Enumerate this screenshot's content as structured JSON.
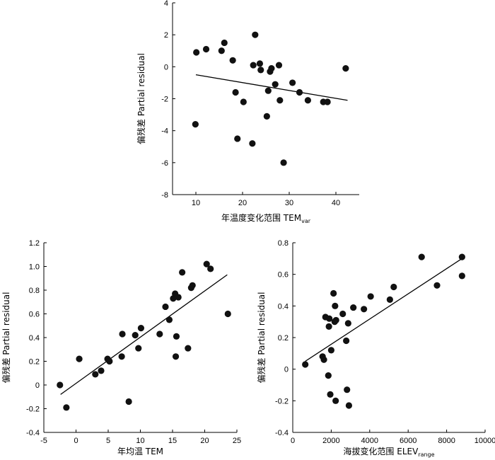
{
  "chart_data": [
    {
      "type": "scatter",
      "xlabel": "年温度变化范围 TEM",
      "xlabel_sub": "var",
      "ylabel": "偏残差 Partial residual",
      "xlim": [
        5,
        45
      ],
      "ylim": [
        -8,
        4
      ],
      "xticks": [
        10,
        20,
        30,
        40
      ],
      "yticks": [
        -8,
        -6,
        -4,
        -2,
        0,
        2,
        4
      ],
      "points": [
        [
          9.9,
          -3.6
        ],
        [
          10.1,
          0.9
        ],
        [
          12.2,
          1.1
        ],
        [
          15.5,
          1.0
        ],
        [
          16.1,
          1.5
        ],
        [
          17.9,
          0.4
        ],
        [
          18.5,
          -1.6
        ],
        [
          18.9,
          -4.5
        ],
        [
          20.2,
          -2.2
        ],
        [
          22.1,
          -4.8
        ],
        [
          22.3,
          0.1
        ],
        [
          22.7,
          2.0
        ],
        [
          23.7,
          0.2
        ],
        [
          23.9,
          -0.2
        ],
        [
          25.2,
          -3.1
        ],
        [
          25.5,
          -1.5
        ],
        [
          25.9,
          -0.3
        ],
        [
          26.2,
          -0.1
        ],
        [
          27.0,
          -1.1
        ],
        [
          27.8,
          0.1
        ],
        [
          28.0,
          -2.1
        ],
        [
          28.8,
          -6.0
        ],
        [
          30.7,
          -1.0
        ],
        [
          32.2,
          -1.6
        ],
        [
          34.0,
          -2.1
        ],
        [
          37.3,
          -2.2
        ],
        [
          38.2,
          -2.2
        ],
        [
          42.1,
          -0.1
        ]
      ],
      "fit_line": [
        [
          10,
          -0.5
        ],
        [
          42.5,
          -2.1
        ]
      ]
    },
    {
      "type": "scatter",
      "xlabel": "年均温 TEM",
      "ylabel": "偏残差 Partial residual",
      "xlim": [
        -5,
        25
      ],
      "ylim": [
        -0.4,
        1.2
      ],
      "xticks": [
        -5,
        0,
        5,
        10,
        15,
        20,
        25
      ],
      "yticks": [
        -0.4,
        -0.2,
        0,
        0.2,
        0.4,
        0.6,
        0.8,
        1.0,
        1.2
      ],
      "points": [
        [
          -2.5,
          0.0
        ],
        [
          -1.5,
          -0.19
        ],
        [
          0.5,
          0.22
        ],
        [
          3.0,
          0.09
        ],
        [
          3.9,
          0.12
        ],
        [
          4.9,
          0.22
        ],
        [
          5.2,
          0.2
        ],
        [
          7.1,
          0.24
        ],
        [
          7.2,
          0.43
        ],
        [
          8.2,
          -0.14
        ],
        [
          9.2,
          0.42
        ],
        [
          9.7,
          0.31
        ],
        [
          10.1,
          0.48
        ],
        [
          13.0,
          0.43
        ],
        [
          13.9,
          0.66
        ],
        [
          14.5,
          0.55
        ],
        [
          15.1,
          0.73
        ],
        [
          15.4,
          0.77
        ],
        [
          15.5,
          0.24
        ],
        [
          15.6,
          0.41
        ],
        [
          15.9,
          0.74
        ],
        [
          16.5,
          0.95
        ],
        [
          17.4,
          0.31
        ],
        [
          17.9,
          0.82
        ],
        [
          18.1,
          0.84
        ],
        [
          20.3,
          1.02
        ],
        [
          20.9,
          0.98
        ],
        [
          23.6,
          0.6
        ]
      ],
      "fit_line": [
        [
          -2.4,
          -0.08
        ],
        [
          23.5,
          0.93
        ]
      ]
    },
    {
      "type": "scatter",
      "xlabel": "海拔变化范围 ELEV",
      "xlabel_sub": "range",
      "ylabel": "偏残差 Partial residual",
      "xlim": [
        0,
        10000
      ],
      "ylim": [
        -0.4,
        0.8
      ],
      "xticks": [
        0,
        2000,
        4000,
        6000,
        8000,
        10000
      ],
      "yticks": [
        -0.4,
        -0.2,
        0,
        0.2,
        0.4,
        0.6,
        0.8
      ],
      "points": [
        [
          650,
          0.03
        ],
        [
          1550,
          0.08
        ],
        [
          1620,
          0.06
        ],
        [
          1700,
          0.33
        ],
        [
          1850,
          -0.04
        ],
        [
          1880,
          0.27
        ],
        [
          1900,
          0.32
        ],
        [
          1950,
          -0.16
        ],
        [
          2000,
          0.12
        ],
        [
          2120,
          0.48
        ],
        [
          2180,
          0.3
        ],
        [
          2200,
          0.4
        ],
        [
          2230,
          -0.2
        ],
        [
          2250,
          0.31
        ],
        [
          2600,
          0.35
        ],
        [
          2780,
          0.18
        ],
        [
          2820,
          -0.13
        ],
        [
          2880,
          0.29
        ],
        [
          2920,
          -0.23
        ],
        [
          3150,
          0.39
        ],
        [
          3700,
          0.38
        ],
        [
          4050,
          0.46
        ],
        [
          5050,
          0.44
        ],
        [
          5250,
          0.52
        ],
        [
          6700,
          0.71
        ],
        [
          7500,
          0.53
        ],
        [
          8800,
          0.71
        ],
        [
          8800,
          0.59
        ]
      ],
      "fit_line": [
        [
          650,
          0.05
        ],
        [
          8800,
          0.7
        ]
      ]
    }
  ]
}
